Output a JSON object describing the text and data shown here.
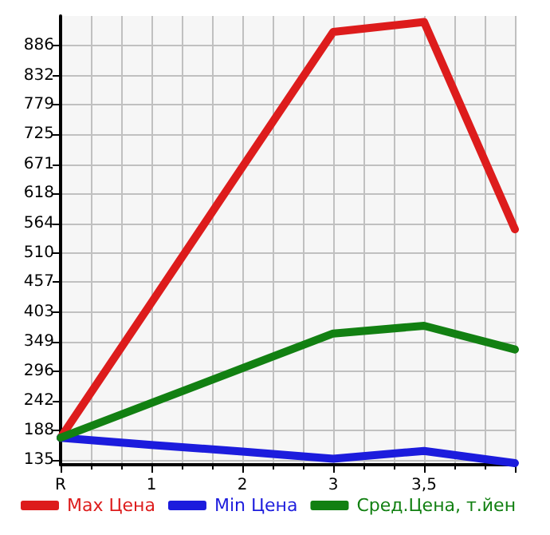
{
  "chart_data": {
    "type": "line",
    "categories": [
      "R",
      "1",
      "2",
      "3",
      "3,5",
      null
    ],
    "ylim": [
      126,
      940
    ],
    "yticks": [
      135,
      188,
      242,
      296,
      349,
      403,
      457,
      510,
      564,
      618,
      671,
      725,
      779,
      832,
      886
    ],
    "series": [
      {
        "name": "Max Цена",
        "color": "#dd1c1c",
        "values": [
          175,
          420,
          666,
          911,
          929,
          553
        ]
      },
      {
        "name": "Min Цена",
        "color": "#1c1cdd",
        "values": [
          175,
          162,
          150,
          137,
          151,
          129
        ]
      },
      {
        "name": "Сред.Цена, т.йен",
        "color": "#128012",
        "values": [
          175,
          238,
          301,
          364,
          378,
          335
        ]
      }
    ],
    "grid": true,
    "legend": "bottom",
    "marker": "none",
    "line_style": "solid"
  }
}
